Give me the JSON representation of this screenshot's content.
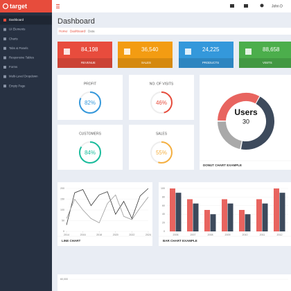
{
  "sidebar": {
    "brand": "target",
    "items": [
      "Dashboard",
      "UI Elements",
      "Charts",
      "Tabs & Panels",
      "Responsive Tables",
      "Forms",
      "Multi-Level Dropdown",
      "Empty Page"
    ]
  },
  "topbar": {
    "user": "John D"
  },
  "header": {
    "title": "Dashboard",
    "breadcrumb": [
      "Home",
      "Dashboard",
      "Data"
    ]
  },
  "tiles": [
    {
      "value": "84,198",
      "label": "REVENUE",
      "color": "#e84c3d"
    },
    {
      "value": "36,540",
      "label": "SALES",
      "color": "#f39c12"
    },
    {
      "value": "24,225",
      "label": "PRODUCTS",
      "color": "#3498db"
    },
    {
      "value": "88,658",
      "label": "VISITS",
      "color": "#4cae4c"
    }
  ],
  "gauges": [
    {
      "title": "PROFIT",
      "value": 82,
      "label": "82%",
      "color": "#3498db"
    },
    {
      "title": "NO. OF VISITS",
      "value": 46,
      "label": "46%",
      "color": "#e74c3c"
    },
    {
      "title": "CUSTOMERS",
      "value": 84,
      "label": "84%",
      "color": "#1abc9c"
    },
    {
      "title": "SALES",
      "value": 55,
      "label": "55%",
      "color": "#f5b041"
    }
  ],
  "chart_data": [
    {
      "type": "pie",
      "title": "DONUT CHART EXAMPLE",
      "center_title": "Users",
      "center_value": "30",
      "values": [
        45,
        22,
        33
      ],
      "colors": [
        "#3d4a5c",
        "#a9a9a9",
        "#e8645f"
      ]
    },
    {
      "type": "line",
      "title": "LINE CHART",
      "x": [
        2014,
        2015,
        2016,
        2017,
        2018,
        2019,
        2020,
        2021,
        2022,
        2023,
        2024
      ],
      "xlim": [
        2014,
        2024
      ],
      "xticks": [
        2014,
        2016,
        2018,
        2020,
        2022,
        2024
      ],
      "ylim": [
        0,
        200
      ],
      "yticks": [
        0,
        50,
        100,
        150,
        200
      ],
      "series": [
        {
          "color": "#333333",
          "values": [
            30,
            180,
            195,
            120,
            170,
            185,
            80,
            140,
            60,
            165,
            200
          ]
        },
        {
          "color": "#999999",
          "values": [
            60,
            150,
            100,
            60,
            40,
            130,
            170,
            70,
            55,
            110,
            160
          ]
        }
      ]
    },
    {
      "type": "bar",
      "title": "BAR CHART EXAMPLE",
      "categories": [
        "2006",
        "2007",
        "2008",
        "2009",
        "2010",
        "2011",
        "2012"
      ],
      "ylim": [
        0,
        100
      ],
      "yticks": [
        0,
        20,
        40,
        60,
        80,
        100
      ],
      "series": [
        {
          "color": "#e8645f",
          "values": [
            100,
            75,
            50,
            75,
            50,
            75,
            100
          ]
        },
        {
          "color": "#3d4a5c",
          "values": [
            90,
            65,
            40,
            65,
            40,
            65,
            90
          ]
        }
      ]
    },
    {
      "type": "area",
      "ylim": [
        0,
        60000
      ],
      "yticks": [
        {
          "value": 60000,
          "label": "60,000"
        }
      ]
    }
  ]
}
